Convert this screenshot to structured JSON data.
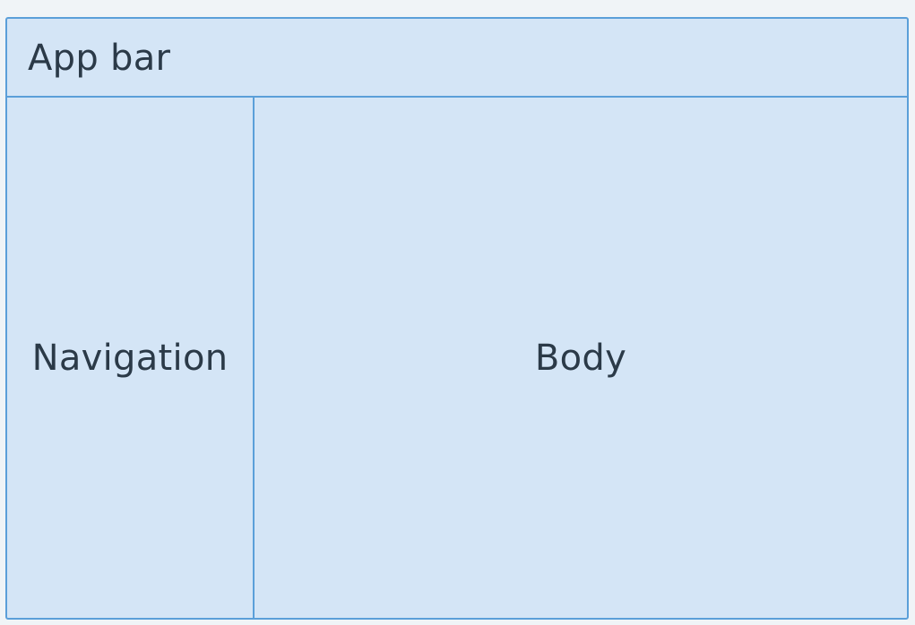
{
  "diagram": {
    "app_bar": {
      "label": "App bar"
    },
    "navigation": {
      "label": "Navigation"
    },
    "body": {
      "label": "Body"
    }
  },
  "colors": {
    "background": "#f0f4f7",
    "region_fill": "#d4e5f6",
    "region_border": "#5b9fd9",
    "text": "#2b3a48"
  }
}
